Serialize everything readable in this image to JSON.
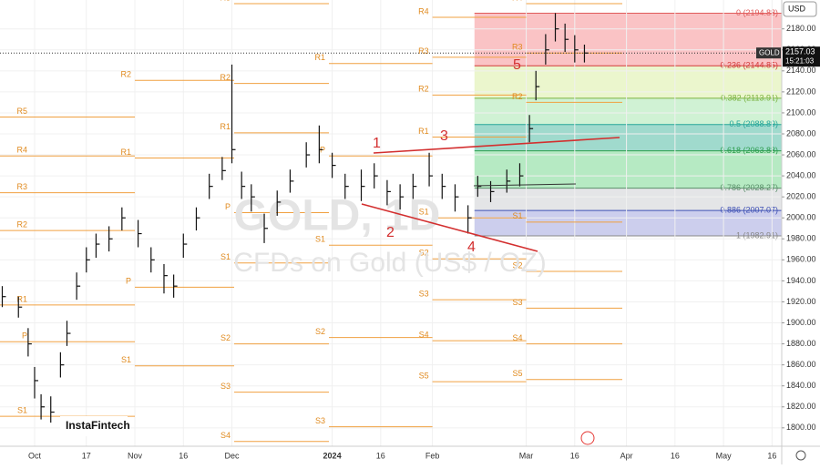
{
  "chart_data": {
    "type": "ohlc",
    "symbol": "GOLD",
    "currency": "USD",
    "watermark": "GOLD, 1D",
    "subtitle": "CFDs on Gold (US$ / OZ)",
    "brand": "InstaFintech",
    "last_price": {
      "value": 2157.03,
      "label": "2157.03"
    },
    "countdown": "15:21:03",
    "x": [
      -10,
      -5,
      -2,
      0,
      2,
      5,
      8,
      10,
      13,
      16,
      19,
      23,
      27,
      32,
      36,
      40,
      43,
      46,
      50,
      54,
      58,
      61,
      64,
      67,
      71,
      75,
      79,
      84,
      88,
      92,
      96,
      101,
      105,
      109,
      113,
      117,
      122,
      126,
      130,
      134,
      137,
      141,
      146,
      150,
      153,
      155,
      158,
      161,
      164,
      167,
      170
    ],
    "high": [
      1935,
      1925,
      1895,
      1858,
      1832,
      1830,
      1872,
      1902,
      1948,
      1972,
      1985,
      1992,
      2010,
      1998,
      1972,
      1956,
      1946,
      1985,
      2010,
      2042,
      2058,
      2146,
      2044,
      2032,
      2004,
      2026,
      2046,
      2072,
      2088,
      2062,
      2042,
      2046,
      2052,
      2036,
      2032,
      2042,
      2062,
      2042,
      2032,
      2012,
      2040,
      2035,
      2046,
      2052,
      2098,
      2140,
      2175,
      2195,
      2185,
      2174,
      2165
    ],
    "low": [
      1915,
      1905,
      1868,
      1828,
      1808,
      1805,
      1848,
      1878,
      1922,
      1948,
      1962,
      1968,
      1988,
      1972,
      1948,
      1928,
      1924,
      1962,
      1988,
      2018,
      2036,
      2052,
      2018,
      2006,
      1976,
      2002,
      2024,
      2048,
      2052,
      2038,
      2018,
      2016,
      2028,
      2012,
      2008,
      2018,
      2030,
      2018,
      2006,
      1985,
      2020,
      2015,
      2024,
      2030,
      2072,
      2112,
      2146,
      2168,
      2158,
      2148,
      2148
    ],
    "values": [
      1925,
      1915,
      1880,
      1845,
      1820,
      1815,
      1860,
      1890,
      1935,
      1960,
      1975,
      1980,
      2000,
      1985,
      1960,
      1945,
      1935,
      1975,
      2000,
      2030,
      2045,
      2065,
      2030,
      2020,
      1990,
      2015,
      2035,
      2060,
      2065,
      2050,
      2030,
      2030,
      2040,
      2025,
      2020,
      2030,
      2040,
      2030,
      2020,
      2000,
      2030,
      2025,
      2035,
      2040,
      2085,
      2125,
      2160,
      2180,
      2170,
      2160,
      2157
    ],
    "ylim": [
      1782.5,
      2207.5
    ],
    "yticks": [
      {
        "value": 1800,
        "label": "1800.00"
      },
      {
        "value": 1820,
        "label": "1820.00"
      },
      {
        "value": 1840,
        "label": "1840.00"
      },
      {
        "value": 1860,
        "label": "1860.00"
      },
      {
        "value": 1880,
        "label": "1880.00"
      },
      {
        "value": 1900,
        "label": "1900.00"
      },
      {
        "value": 1920,
        "label": "1920.00"
      },
      {
        "value": 1940,
        "label": "1940.00"
      },
      {
        "value": 1960,
        "label": "1960.00"
      },
      {
        "value": 1980,
        "label": "1980.00"
      },
      {
        "value": 2000,
        "label": "2000.00"
      },
      {
        "value": 2020,
        "label": "2020.00"
      },
      {
        "value": 2040,
        "label": "2040.00"
      },
      {
        "value": 2060,
        "label": "2060.00"
      },
      {
        "value": 2080,
        "label": "2080.00"
      },
      {
        "value": 2100,
        "label": "2100.00"
      },
      {
        "value": 2120,
        "label": "2120.00"
      },
      {
        "value": 2140,
        "label": "2140.00"
      },
      {
        "value": 2160,
        "label": "2160.00"
      },
      {
        "value": 2180,
        "label": "2180.00"
      }
    ],
    "xlim": [
      -10.7,
      231
    ],
    "xticks": [
      {
        "value": 0,
        "label": "Oct"
      },
      {
        "value": 16,
        "label": "17"
      },
      {
        "value": 31,
        "label": "Nov"
      },
      {
        "value": 46,
        "label": "16"
      },
      {
        "value": 61,
        "label": "Dec"
      },
      {
        "value": 92,
        "label": "2024"
      },
      {
        "value": 107,
        "label": "16"
      },
      {
        "value": 123,
        "label": "Feb"
      },
      {
        "value": 152,
        "label": "Mar"
      },
      {
        "value": 167,
        "label": "16"
      },
      {
        "value": 183,
        "label": "Apr"
      },
      {
        "value": 198,
        "label": "16"
      },
      {
        "value": 213,
        "label": "May"
      },
      {
        "value": 228,
        "label": "16"
      }
    ],
    "fib_start": 136,
    "fib_levels": [
      {
        "label": "0 (2194.88)",
        "value": 2194.88,
        "color": "#e05a5a",
        "fill": "#f9b9bb"
      },
      {
        "label": "0.236 (2144.85)",
        "value": 2144.85,
        "color": "#d23a3a",
        "fill": "#e8f5c4"
      },
      {
        "label": "0.382 (2113.91)",
        "value": 2113.91,
        "color": "#7cb342",
        "fill": "#c8f0cc"
      },
      {
        "label": "0.5 (2088.89)",
        "value": 2088.89,
        "color": "#26a69a",
        "fill": "#8fd3c4"
      },
      {
        "label": "0.618 (2063.88)",
        "value": 2063.88,
        "color": "#2e9e4f",
        "fill": "#a9e6b8"
      },
      {
        "label": "0.786 (2028.27)",
        "value": 2028.27,
        "color": "#5a8f6a",
        "fill": "#dfe1e3"
      },
      {
        "label": "0.886 (2007.07)",
        "value": 2007.07,
        "color": "#3f51b5",
        "fill": "#c3c6ea"
      },
      {
        "label": "1 (1982.91)",
        "value": 1982.91,
        "color": "#888888",
        "fill": null
      }
    ],
    "pivot_periods": [
      {
        "start": -10.7,
        "end": 31,
        "levels": [
          {
            "label": "R5",
            "value": 2096
          },
          {
            "label": "R4",
            "value": 2059
          },
          {
            "label": "R3",
            "value": 2024
          },
          {
            "label": "R2",
            "value": 1988
          },
          {
            "label": "R1",
            "value": 1917
          },
          {
            "label": "P",
            "value": 1882
          },
          {
            "label": "S1",
            "value": 1811
          }
        ]
      },
      {
        "start": 31,
        "end": 61.7,
        "levels": [
          {
            "label": "R2",
            "value": 2131
          },
          {
            "label": "R1",
            "value": 2057
          },
          {
            "label": "P",
            "value": 1934
          },
          {
            "label": "S1",
            "value": 1859
          }
        ]
      },
      {
        "start": 61.7,
        "end": 91,
        "levels": [
          {
            "label": "R3",
            "value": 2204
          },
          {
            "label": "R2",
            "value": 2128
          },
          {
            "label": "R1",
            "value": 2081
          },
          {
            "label": "P",
            "value": 2005
          },
          {
            "label": "S1",
            "value": 1957
          },
          {
            "label": "S2",
            "value": 1880
          },
          {
            "label": "S3",
            "value": 1834
          },
          {
            "label": "S4",
            "value": 1787
          }
        ]
      },
      {
        "start": 91,
        "end": 123,
        "levels": [
          {
            "label": "R1",
            "value": 2147
          },
          {
            "label": "P",
            "value": 2059
          },
          {
            "label": "S1",
            "value": 1974
          },
          {
            "label": "S2",
            "value": 1886
          },
          {
            "label": "S3",
            "value": 1801
          }
        ]
      },
      {
        "start": 123,
        "end": 152,
        "levels": [
          {
            "label": "R4",
            "value": 2191
          },
          {
            "label": "R3",
            "value": 2153
          },
          {
            "label": "R2",
            "value": 2117
          },
          {
            "label": "R1",
            "value": 2077
          },
          {
            "label": "S1",
            "value": 2000
          },
          {
            "label": "S2",
            "value": 1961
          },
          {
            "label": "S3",
            "value": 1922
          },
          {
            "label": "S4",
            "value": 1883
          },
          {
            "label": "S5",
            "value": 1844
          }
        ]
      },
      {
        "start": 152,
        "end": 181.7,
        "levels": [
          {
            "label": "R4",
            "value": 2204
          },
          {
            "label": "R3",
            "value": 2157
          },
          {
            "label": "R2",
            "value": 2110
          },
          {
            "label": "S1",
            "value": 1996
          },
          {
            "label": "S2",
            "value": 1949
          },
          {
            "label": "S3",
            "value": 1914
          },
          {
            "label": "S4",
            "value": 1880
          },
          {
            "label": "S5",
            "value": 1846
          }
        ]
      }
    ],
    "waves": [
      "1",
      "2",
      "3",
      "4",
      "5"
    ]
  }
}
